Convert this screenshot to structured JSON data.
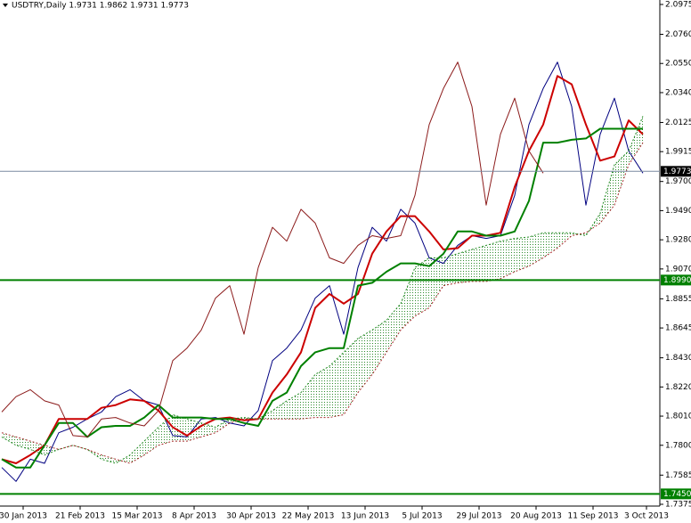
{
  "chart_data": {
    "type": "line",
    "title": "USDTRY,Daily  1.9731 1.9862 1.9731 1.9773",
    "x": [
      0,
      4,
      8,
      12,
      16,
      20,
      24,
      28,
      32,
      36,
      40,
      44,
      48,
      52,
      56,
      60,
      64,
      68,
      72,
      76,
      80,
      84,
      88,
      92,
      96,
      100,
      104,
      108,
      112,
      116,
      120,
      124,
      128,
      132,
      136,
      140,
      144,
      148,
      152,
      156,
      160,
      164,
      168,
      172,
      176,
      180
    ],
    "xlim": [
      0,
      184
    ],
    "xticks": [
      {
        "value": 6,
        "label": "30 Jan 2013"
      },
      {
        "value": 22,
        "label": "21 Feb 2013"
      },
      {
        "value": 38,
        "label": "15 Mar 2013"
      },
      {
        "value": 54,
        "label": "8 Apr 2013"
      },
      {
        "value": 70,
        "label": "30 Apr 2013"
      },
      {
        "value": 86,
        "label": "22 May 2013"
      },
      {
        "value": 102,
        "label": "13 Jun 2013"
      },
      {
        "value": 118,
        "label": "5 Jul 2013"
      },
      {
        "value": 134,
        "label": "29 Jul 2013"
      },
      {
        "value": 150,
        "label": "20 Aug 2013"
      },
      {
        "value": 166,
        "label": "11 Sep 2013"
      },
      {
        "value": 181,
        "label": "3 Oct 2013"
      }
    ],
    "ylim": [
      1.7375,
      2.0975
    ],
    "yticks": [
      {
        "value": 2.0975,
        "label": "2.0975"
      },
      {
        "value": 2.076,
        "label": "2.0760"
      },
      {
        "value": 2.055,
        "label": "2.0550"
      },
      {
        "value": 2.034,
        "label": "2.0340"
      },
      {
        "value": 2.0125,
        "label": "2.0125"
      },
      {
        "value": 1.9915,
        "label": "1.9915"
      },
      {
        "value": 1.97,
        "label": "1.9700"
      },
      {
        "value": 1.949,
        "label": "1.9490"
      },
      {
        "value": 1.928,
        "label": "1.9280"
      },
      {
        "value": 1.907,
        "label": "1.9070"
      },
      {
        "value": 1.8855,
        "label": "1.8855"
      },
      {
        "value": 1.8645,
        "label": "1.8645"
      },
      {
        "value": 1.843,
        "label": "1.8430"
      },
      {
        "value": 1.822,
        "label": "1.8220"
      },
      {
        "value": 1.801,
        "label": "1.8010"
      },
      {
        "value": 1.78,
        "label": "1.7800"
      },
      {
        "value": 1.7585,
        "label": "1.7585"
      },
      {
        "value": 1.7375,
        "label": "1.7375"
      }
    ],
    "cloud_color": "#2e8b2e",
    "series": [
      {
        "color": "#000080",
        "width": 1,
        "values": [
          1.764,
          1.754,
          1.77,
          1.767,
          1.789,
          1.793,
          1.799,
          1.804,
          1.815,
          1.82,
          1.812,
          1.809,
          1.787,
          1.786,
          1.799,
          1.8,
          1.796,
          1.794,
          1.805,
          1.841,
          1.85,
          1.863,
          1.886,
          1.895,
          1.86,
          1.908,
          1.937,
          1.927,
          1.95,
          1.94,
          1.915,
          1.911,
          1.924,
          1.931,
          1.929,
          1.931,
          1.96,
          2.011,
          2.037,
          2.056,
          2.024,
          1.953,
          2.004,
          2.03,
          1.992,
          1.976
        ]
      },
      {
        "color": "#cc0000",
        "width": 2,
        "values": [
          1.77,
          1.767,
          1.773,
          1.78,
          1.799,
          1.799,
          1.799,
          1.807,
          1.809,
          1.813,
          1.812,
          1.805,
          1.793,
          1.787,
          1.794,
          1.799,
          1.8,
          1.798,
          1.799,
          1.818,
          1.831,
          1.847,
          1.879,
          1.889,
          1.882,
          1.889,
          1.918,
          1.934,
          1.945,
          1.945,
          1.934,
          1.921,
          1.922,
          1.931,
          1.931,
          1.933,
          1.966,
          1.992,
          2.011,
          2.046,
          2.04,
          2.011,
          1.985,
          1.988,
          2.014,
          2.004
        ]
      },
      {
        "color": "#008000",
        "width": 2,
        "values": [
          1.77,
          1.764,
          1.764,
          1.78,
          1.796,
          1.796,
          1.786,
          1.793,
          1.794,
          1.794,
          1.8,
          1.809,
          1.8,
          1.8,
          1.8,
          1.799,
          1.799,
          1.796,
          1.794,
          1.812,
          1.818,
          1.837,
          1.847,
          1.85,
          1.85,
          1.895,
          1.897,
          1.905,
          1.911,
          1.911,
          1.909,
          1.918,
          1.934,
          1.934,
          1.931,
          1.931,
          1.934,
          1.956,
          1.998,
          1.998,
          2.0,
          2.001,
          2.008,
          2.008,
          2.008,
          2.008
        ]
      },
      {
        "color": "#8b1a1a",
        "width": 1,
        "values": [
          1.804,
          1.815,
          1.82,
          1.812,
          1.809,
          1.787,
          1.786,
          1.799,
          1.8,
          1.796,
          1.794,
          1.805,
          1.841,
          1.85,
          1.863,
          1.886,
          1.895,
          1.86,
          1.908,
          1.937,
          1.927,
          1.95,
          1.94,
          1.915,
          1.911,
          1.924,
          1.931,
          1.929,
          1.931,
          1.96,
          2.011,
          2.037,
          2.056,
          2.024,
          1.953,
          2.004,
          2.03,
          1.992,
          1.976,
          null,
          null,
          null,
          null,
          null,
          null,
          null
        ]
      },
      {
        "color": "#228b22",
        "width": 1,
        "dashed": true,
        "values": [
          1.786,
          1.78,
          1.777,
          1.773,
          1.777,
          1.78,
          1.777,
          1.77,
          1.767,
          1.773,
          1.783,
          1.793,
          1.802,
          1.799,
          1.796,
          1.793,
          1.799,
          1.8,
          1.799,
          1.805,
          1.812,
          1.818,
          1.831,
          1.837,
          1.847,
          1.857,
          1.863,
          1.87,
          1.882,
          1.908,
          1.915,
          1.915,
          1.918,
          1.921,
          1.924,
          1.927,
          1.929,
          1.93,
          1.933,
          1.933,
          1.933,
          1.931,
          1.947,
          1.982,
          1.992,
          2.017
        ]
      },
      {
        "color": "#a52a2a",
        "width": 1,
        "dashed": true,
        "values": [
          1.789,
          1.786,
          1.783,
          1.78,
          1.777,
          1.78,
          1.777,
          1.773,
          1.77,
          1.767,
          1.773,
          1.78,
          1.783,
          1.783,
          1.786,
          1.789,
          1.796,
          1.799,
          1.799,
          1.799,
          1.799,
          1.799,
          1.8,
          1.8,
          1.802,
          1.818,
          1.831,
          1.847,
          1.863,
          1.873,
          1.879,
          1.895,
          1.897,
          1.898,
          1.898,
          1.9,
          1.905,
          1.909,
          1.915,
          1.922,
          1.931,
          1.933,
          1.94,
          1.953,
          1.982,
          1.998
        ]
      }
    ],
    "levels": [
      {
        "value": 1.9773,
        "label": "1.9773",
        "color": "#7a8aa0",
        "box": "#000000"
      },
      {
        "value": 1.899,
        "label": "1.8990",
        "color": "#008000",
        "box": "#008000"
      },
      {
        "value": 1.745,
        "label": "1.7450",
        "color": "#008000",
        "box": "#008000"
      }
    ]
  }
}
